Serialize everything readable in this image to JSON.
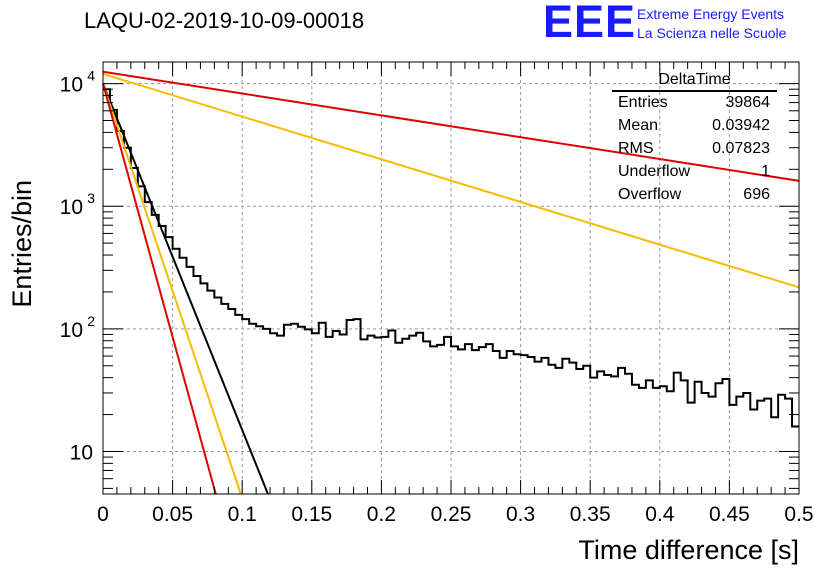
{
  "header": {
    "title": "LAQU-02-2019-10-09-00018",
    "logo_mark": "EEE",
    "logo_line1": "Extreme Energy Events",
    "logo_line2": "La Scienza nelle Scuole",
    "logo_color": "#1a1aff"
  },
  "stats": {
    "name": "DeltaTime",
    "rows": [
      {
        "label": "Entries",
        "value": "39864"
      },
      {
        "label": "Mean",
        "value": "0.03942"
      },
      {
        "label": "RMS",
        "value": "0.07823"
      },
      {
        "label": "Underflow",
        "value": "1"
      },
      {
        "label": "Overflow",
        "value": "696"
      }
    ]
  },
  "chart_data": {
    "type": "line",
    "xlabel": "Time difference [s]",
    "ylabel": "Entries/bin",
    "xlim": [
      0,
      0.5
    ],
    "ylim": [
      4.5,
      15000
    ],
    "y_scale": "log",
    "grid": true,
    "x_ticks": [
      "0",
      "0.05",
      "0.1",
      "0.15",
      "0.2",
      "0.25",
      "0.3",
      "0.35",
      "0.4",
      "0.45",
      "0.5"
    ],
    "y_ticks": [
      {
        "value": 10,
        "label": "10"
      },
      {
        "value": 100,
        "label": "10",
        "exp": "2"
      },
      {
        "value": 1000,
        "label": "10",
        "exp": "3"
      },
      {
        "value": 10000,
        "label": "10",
        "exp": "4"
      }
    ],
    "histogram": {
      "color": "#000000",
      "x": [
        0,
        0.005,
        0.01,
        0.015,
        0.02,
        0.025,
        0.03,
        0.035,
        0.04,
        0.045,
        0.05,
        0.055,
        0.06,
        0.065,
        0.07,
        0.075,
        0.08,
        0.085,
        0.09,
        0.095,
        0.1,
        0.105,
        0.11,
        0.115,
        0.12,
        0.125,
        0.13,
        0.135,
        0.14,
        0.145,
        0.15,
        0.155,
        0.16,
        0.165,
        0.17,
        0.175,
        0.18,
        0.185,
        0.19,
        0.195,
        0.2,
        0.205,
        0.21,
        0.215,
        0.22,
        0.225,
        0.23,
        0.235,
        0.24,
        0.245,
        0.25,
        0.255,
        0.26,
        0.265,
        0.27,
        0.275,
        0.28,
        0.285,
        0.29,
        0.295,
        0.3,
        0.305,
        0.31,
        0.315,
        0.32,
        0.325,
        0.33,
        0.335,
        0.34,
        0.345,
        0.35,
        0.355,
        0.36,
        0.365,
        0.37,
        0.375,
        0.38,
        0.385,
        0.39,
        0.395,
        0.4,
        0.405,
        0.41,
        0.415,
        0.42,
        0.425,
        0.43,
        0.435,
        0.44,
        0.445,
        0.45,
        0.455,
        0.46,
        0.465,
        0.47,
        0.475,
        0.48,
        0.485,
        0.49,
        0.495
      ],
      "values": [
        9000,
        6100,
        4100,
        3000,
        2050,
        1450,
        1080,
        850,
        690,
        560,
        450,
        380,
        320,
        270,
        235,
        205,
        180,
        160,
        145,
        130,
        120,
        110,
        105,
        100,
        92,
        88,
        108,
        110,
        104,
        99,
        92,
        112,
        86,
        96,
        90,
        118,
        120,
        82,
        88,
        85,
        86,
        97,
        77,
        83,
        88,
        93,
        79,
        72,
        74,
        86,
        72,
        68,
        75,
        67,
        71,
        75,
        66,
        58,
        66,
        62,
        61,
        59,
        54,
        58,
        51,
        48,
        57,
        53,
        47,
        50,
        40,
        45,
        42,
        41,
        48,
        43,
        35,
        33,
        38,
        33,
        34,
        31,
        44,
        38,
        25,
        37,
        30,
        28,
        36,
        39,
        24,
        28,
        30,
        22,
        26,
        27,
        19,
        29,
        27,
        16
      ]
    },
    "fits": [
      {
        "name": "",
        "color": "#e00000",
        "x0": 0,
        "y0": 12500,
        "x1": 0.5,
        "y1": 1610
      },
      {
        "name": "",
        "color": "#f5bd00",
        "x0": 0,
        "y0": 12000,
        "x1": 0.5,
        "y1": 218
      },
      {
        "name": "",
        "color": "#000000",
        "x0": 0,
        "y0": 10000,
        "x1": 0.1185,
        "y1": 4.5
      },
      {
        "name": "",
        "color": "#f5bd00",
        "x0": 0,
        "y0": 10000,
        "x1": 0.099,
        "y1": 4.5
      },
      {
        "name": "",
        "color": "#e00000",
        "x0": 0,
        "y0": 10000,
        "x1": 0.081,
        "y1": 4.5
      }
    ]
  }
}
